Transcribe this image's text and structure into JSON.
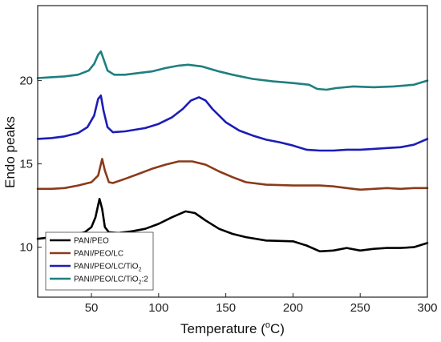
{
  "chart_data": {
    "type": "line",
    "xlabel": "Temperature (°C)",
    "ylabel": "Endo peaks",
    "xlim": [
      10,
      300
    ],
    "ylim": [
      7,
      24.5
    ],
    "x_ticks": [
      50,
      100,
      150,
      200,
      250,
      300
    ],
    "y_ticks": [
      10,
      15,
      20
    ],
    "grid": false,
    "legend_position": "bottom-left",
    "series": [
      {
        "name": "PAN/PEO",
        "color": "#000000",
        "points": [
          [
            10,
            10.5
          ],
          [
            15,
            10.55
          ],
          [
            20,
            10.6
          ],
          [
            25,
            10.4
          ],
          [
            30,
            10.7
          ],
          [
            35,
            10.75
          ],
          [
            40,
            10.8
          ],
          [
            45,
            10.9
          ],
          [
            50,
            11.2
          ],
          [
            53,
            11.8
          ],
          [
            56,
            12.9
          ],
          [
            58,
            12.3
          ],
          [
            60,
            11.2
          ],
          [
            63,
            10.9
          ],
          [
            70,
            10.85
          ],
          [
            80,
            10.95
          ],
          [
            90,
            11.1
          ],
          [
            100,
            11.4
          ],
          [
            110,
            11.8
          ],
          [
            120,
            12.15
          ],
          [
            127,
            12.05
          ],
          [
            135,
            11.6
          ],
          [
            145,
            11.1
          ],
          [
            155,
            10.8
          ],
          [
            165,
            10.6
          ],
          [
            180,
            10.4
          ],
          [
            200,
            10.35
          ],
          [
            210,
            10.1
          ],
          [
            220,
            9.75
          ],
          [
            230,
            9.8
          ],
          [
            240,
            9.95
          ],
          [
            250,
            9.8
          ],
          [
            260,
            9.9
          ],
          [
            270,
            9.95
          ],
          [
            280,
            9.95
          ],
          [
            290,
            10.0
          ],
          [
            300,
            10.25
          ]
        ]
      },
      {
        "name": "PANI/PEO/LC",
        "color": "#8b3a1a",
        "points": [
          [
            10,
            13.5
          ],
          [
            20,
            13.5
          ],
          [
            30,
            13.55
          ],
          [
            40,
            13.7
          ],
          [
            50,
            13.9
          ],
          [
            55,
            14.3
          ],
          [
            58,
            15.3
          ],
          [
            60,
            14.6
          ],
          [
            63,
            13.9
          ],
          [
            66,
            13.85
          ],
          [
            75,
            14.1
          ],
          [
            85,
            14.4
          ],
          [
            95,
            14.7
          ],
          [
            105,
            14.95
          ],
          [
            115,
            15.15
          ],
          [
            125,
            15.15
          ],
          [
            135,
            14.95
          ],
          [
            145,
            14.55
          ],
          [
            155,
            14.2
          ],
          [
            165,
            13.9
          ],
          [
            180,
            13.75
          ],
          [
            200,
            13.7
          ],
          [
            220,
            13.7
          ],
          [
            230,
            13.65
          ],
          [
            240,
            13.55
          ],
          [
            250,
            13.45
          ],
          [
            260,
            13.5
          ],
          [
            270,
            13.55
          ],
          [
            280,
            13.5
          ],
          [
            290,
            13.55
          ],
          [
            300,
            13.55
          ]
        ]
      },
      {
        "name": "PANI/PEO/LC/TiO2",
        "color": "#1c1cb8",
        "points": [
          [
            10,
            16.5
          ],
          [
            20,
            16.55
          ],
          [
            30,
            16.65
          ],
          [
            40,
            16.85
          ],
          [
            47,
            17.2
          ],
          [
            52,
            17.9
          ],
          [
            55,
            18.9
          ],
          [
            57,
            19.1
          ],
          [
            59,
            18.2
          ],
          [
            62,
            17.2
          ],
          [
            66,
            16.9
          ],
          [
            75,
            16.95
          ],
          [
            90,
            17.15
          ],
          [
            100,
            17.4
          ],
          [
            110,
            17.8
          ],
          [
            118,
            18.3
          ],
          [
            124,
            18.8
          ],
          [
            130,
            19.0
          ],
          [
            135,
            18.8
          ],
          [
            140,
            18.3
          ],
          [
            150,
            17.5
          ],
          [
            160,
            17.0
          ],
          [
            170,
            16.7
          ],
          [
            180,
            16.45
          ],
          [
            190,
            16.3
          ],
          [
            200,
            16.1
          ],
          [
            210,
            15.85
          ],
          [
            220,
            15.8
          ],
          [
            230,
            15.8
          ],
          [
            240,
            15.85
          ],
          [
            250,
            15.85
          ],
          [
            260,
            15.9
          ],
          [
            270,
            15.95
          ],
          [
            280,
            16.0
          ],
          [
            290,
            16.15
          ],
          [
            300,
            16.5
          ]
        ]
      },
      {
        "name": "PANI/PEO/LC/TiO2:2",
        "color": "#1f7f7f",
        "points": [
          [
            10,
            20.15
          ],
          [
            20,
            20.2
          ],
          [
            30,
            20.25
          ],
          [
            40,
            20.35
          ],
          [
            48,
            20.6
          ],
          [
            52,
            21.0
          ],
          [
            55,
            21.55
          ],
          [
            57,
            21.75
          ],
          [
            59,
            21.3
          ],
          [
            62,
            20.6
          ],
          [
            67,
            20.35
          ],
          [
            75,
            20.35
          ],
          [
            85,
            20.45
          ],
          [
            95,
            20.55
          ],
          [
            105,
            20.75
          ],
          [
            115,
            20.9
          ],
          [
            122,
            20.95
          ],
          [
            132,
            20.85
          ],
          [
            145,
            20.55
          ],
          [
            155,
            20.35
          ],
          [
            170,
            20.1
          ],
          [
            185,
            19.95
          ],
          [
            200,
            19.85
          ],
          [
            212,
            19.75
          ],
          [
            218,
            19.5
          ],
          [
            225,
            19.45
          ],
          [
            232,
            19.55
          ],
          [
            245,
            19.65
          ],
          [
            260,
            19.6
          ],
          [
            275,
            19.65
          ],
          [
            290,
            19.75
          ],
          [
            300,
            20.0
          ]
        ]
      }
    ]
  },
  "legend": {
    "entries": [
      {
        "base": "PAN/PEO",
        "sub": "",
        "tail": ""
      },
      {
        "base": "PANI/PEO/LC",
        "sub": "",
        "tail": ""
      },
      {
        "base": "PANI/PEO/LC/TiO",
        "sub": "2",
        "tail": ""
      },
      {
        "base": "PANI/PEO/LC/TiO",
        "sub": "2",
        "tail": ":2"
      }
    ]
  },
  "axis": {
    "x_title_pre": "Temperature (",
    "x_title_deg": "o",
    "x_title_post": "C)",
    "y_title": "Endo peaks"
  }
}
